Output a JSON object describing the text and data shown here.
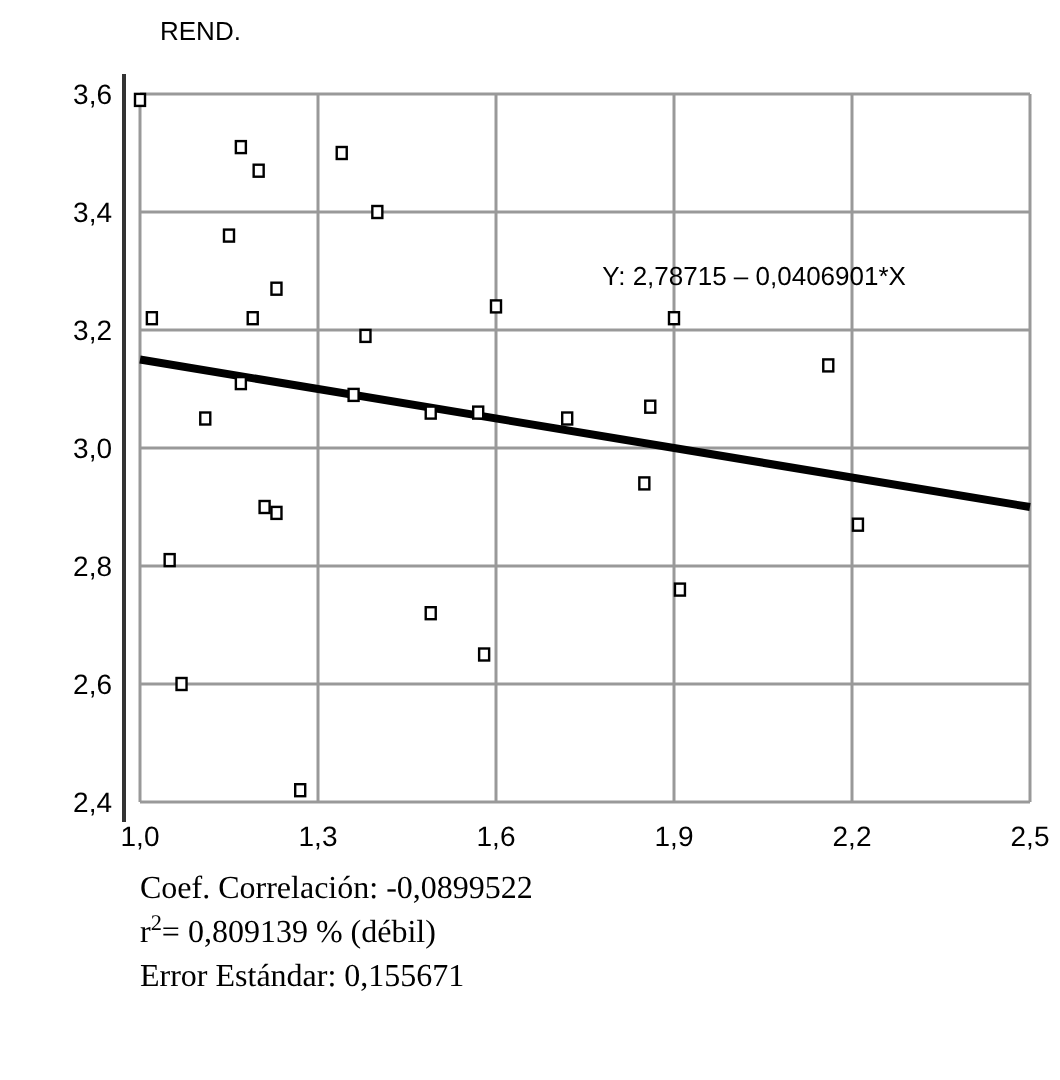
{
  "chart_data": {
    "type": "scatter",
    "ylabel": "REND.",
    "xlim": [
      1.0,
      2.5
    ],
    "xticks": [
      {
        "value": 1.0,
        "label": "1,0"
      },
      {
        "value": 1.3,
        "label": "1,3"
      },
      {
        "value": 1.6,
        "label": "1,6"
      },
      {
        "value": 1.9,
        "label": "1,9"
      },
      {
        "value": 2.2,
        "label": "2,2"
      },
      {
        "value": 2.5,
        "label": "2,5"
      }
    ],
    "ylim": [
      2.4,
      3.6
    ],
    "yticks": [
      {
        "value": 2.4,
        "label": "2,4"
      },
      {
        "value": 2.6,
        "label": "2,6"
      },
      {
        "value": 2.8,
        "label": "2,8"
      },
      {
        "value": 3.0,
        "label": "3,0"
      },
      {
        "value": 3.2,
        "label": "3,2"
      },
      {
        "value": 3.4,
        "label": "3,4"
      },
      {
        "value": 3.6,
        "label": "3,6"
      }
    ],
    "grid": true,
    "series": [
      {
        "marker": "square",
        "color": "#000000",
        "x": [
          1.0,
          1.02,
          1.05,
          1.07,
          1.11,
          1.15,
          1.17,
          1.17,
          1.19,
          1.2,
          1.21,
          1.23,
          1.23,
          1.27,
          1.34,
          1.36,
          1.4,
          1.38,
          1.49,
          1.49,
          1.58,
          1.57,
          1.6,
          1.72,
          1.86,
          1.85,
          1.9,
          1.91,
          2.16,
          2.21
        ],
        "values": [
          3.59,
          3.22,
          2.81,
          2.6,
          3.05,
          3.36,
          3.51,
          3.11,
          3.22,
          3.47,
          2.9,
          3.27,
          2.89,
          2.42,
          3.5,
          3.09,
          3.4,
          3.19,
          3.06,
          2.72,
          2.65,
          3.06,
          3.24,
          3.05,
          3.07,
          2.94,
          3.22,
          2.76,
          3.14,
          2.87
        ]
      },
      {
        "type": "line",
        "color": "#000000",
        "x": [
          1.0,
          2.5
        ],
        "values": [
          3.15,
          2.9
        ]
      }
    ],
    "annotations": [
      "Y: 2,78715 – 0,0406901*X",
      "Coef. Correlación: -0,0899522",
      "r$^{2}$= 0,809139 % (débil)",
      "Error Estándar: 0,155671"
    ]
  }
}
